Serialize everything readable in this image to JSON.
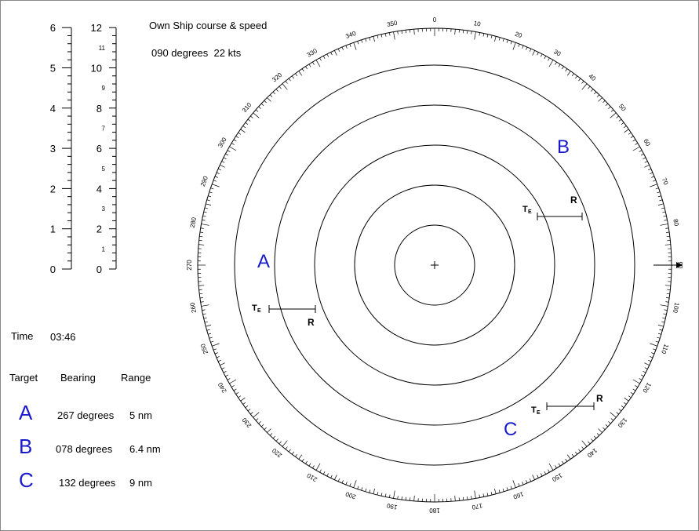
{
  "header": {
    "title": "Own Ship course & speed",
    "course_speed": "090 degrees  22 kts"
  },
  "scales": [
    {
      "labels": [
        0,
        1,
        2,
        3,
        4,
        5,
        6
      ]
    },
    {
      "major": [
        0,
        2,
        4,
        6,
        8,
        10,
        12
      ],
      "minor": [
        1,
        3,
        5,
        7,
        9,
        11
      ]
    }
  ],
  "time": {
    "label": "Time",
    "value": "03:46"
  },
  "table": {
    "columns": [
      "Target",
      "Bearing",
      "Range"
    ],
    "rows": [
      [
        "A",
        "267 degrees",
        "5 nm"
      ],
      [
        "B",
        "078 degrees",
        "6.4 nm"
      ],
      [
        "C",
        "132 degrees",
        "9 nm"
      ]
    ]
  },
  "plot": {
    "bearings": [
      0,
      10,
      20,
      30,
      40,
      50,
      60,
      70,
      80,
      90,
      100,
      110,
      120,
      130,
      140,
      150,
      160,
      170,
      180,
      190,
      200,
      210,
      220,
      230,
      240,
      250,
      260,
      270,
      280,
      290,
      300,
      310,
      320,
      330,
      340,
      350
    ],
    "targets": [
      {
        "label": "A",
        "t": "T",
        "sub": "E",
        "r": "R"
      },
      {
        "label": "B",
        "t": "T",
        "sub": "E",
        "r": "R"
      },
      {
        "label": "C",
        "t": "T",
        "sub": "E",
        "r": "R"
      }
    ]
  }
}
